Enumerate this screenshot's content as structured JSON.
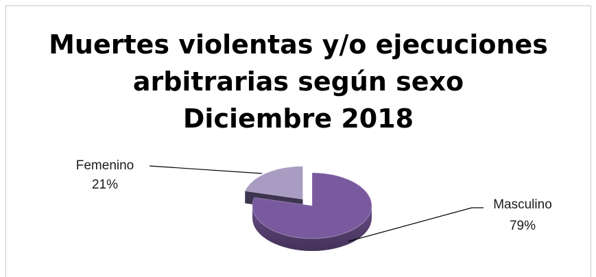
{
  "chart_data": {
    "type": "pie",
    "title_lines": [
      "Muertes violentas y/o ejecuciones",
      "arbitrarias según sexo",
      "Diciembre 2018"
    ],
    "slices": [
      {
        "label": "Masculino",
        "percent_label": "79%",
        "value": 79,
        "color": "#7a5a9e",
        "exploded": false
      },
      {
        "label": "Femenino",
        "percent_label": "21%",
        "value": 21,
        "color": "#a99cc2",
        "exploded": true
      }
    ],
    "style": "3d-exploded"
  }
}
